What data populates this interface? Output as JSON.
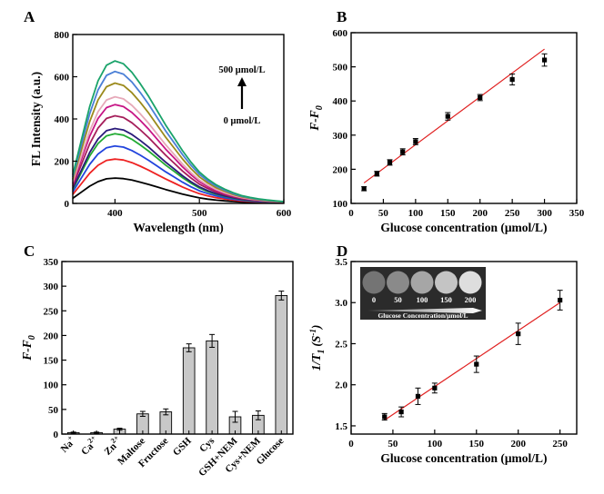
{
  "figure": {
    "panel_letters": [
      "A",
      "B",
      "C",
      "D"
    ]
  },
  "chart_data": [
    {
      "panel": "A",
      "type": "line",
      "xlabel": "Wavelength (nm)",
      "ylabel": "FL Intensity (a.u.)",
      "xlim": [
        350,
        600
      ],
      "ylim": [
        0,
        800
      ],
      "xticks": [
        400,
        500,
        600
      ],
      "yticks": [
        0,
        200,
        400,
        600,
        800
      ],
      "annotation_top": "500 μmol/L",
      "annotation_bottom": "0 μmol/L",
      "peak_wavelength": 403,
      "spectrum_shape": {
        "x": [
          350,
          360,
          370,
          380,
          390,
          400,
          410,
          420,
          430,
          440,
          450,
          460,
          470,
          480,
          490,
          500,
          510,
          520,
          530,
          540,
          550,
          560,
          570,
          580,
          590,
          600
        ],
        "relative": [
          0.2,
          0.44,
          0.68,
          0.86,
          0.97,
          1.0,
          0.98,
          0.92,
          0.84,
          0.75,
          0.65,
          0.55,
          0.46,
          0.37,
          0.29,
          0.22,
          0.17,
          0.13,
          0.1,
          0.075,
          0.055,
          0.042,
          0.032,
          0.024,
          0.018,
          0.013
        ]
      },
      "series": [
        {
          "peak": 120,
          "color": "#000000"
        },
        {
          "peak": 210,
          "color": "#ee2222"
        },
        {
          "peak": 272,
          "color": "#2244dd"
        },
        {
          "peak": 330,
          "color": "#22aa33"
        },
        {
          "peak": 355,
          "color": "#2a1a7a"
        },
        {
          "peak": 415,
          "color": "#a51e5a"
        },
        {
          "peak": 468,
          "color": "#c71585"
        },
        {
          "peak": 505,
          "color": "#e6a8b8"
        },
        {
          "peak": 570,
          "color": "#9b8a1c"
        },
        {
          "peak": 625,
          "color": "#4a7fd6"
        },
        {
          "peak": 675,
          "color": "#1aa36a"
        }
      ]
    },
    {
      "panel": "B",
      "type": "scatter",
      "xlabel": "Glucose concentration (μmol/L)",
      "ylabel": "F-F",
      "ylabel_subscript": "0",
      "xlim": [
        0,
        350
      ],
      "ylim": [
        100,
        600
      ],
      "xticks": [
        0,
        50,
        100,
        150,
        200,
        250,
        300,
        350
      ],
      "yticks": [
        100,
        200,
        300,
        400,
        500,
        600
      ],
      "points": [
        {
          "x": 20,
          "y": 143,
          "err": 6
        },
        {
          "x": 40,
          "y": 187,
          "err": 7
        },
        {
          "x": 60,
          "y": 220,
          "err": 8
        },
        {
          "x": 80,
          "y": 251,
          "err": 9
        },
        {
          "x": 100,
          "y": 281,
          "err": 9
        },
        {
          "x": 150,
          "y": 355,
          "err": 11
        },
        {
          "x": 200,
          "y": 410,
          "err": 9
        },
        {
          "x": 250,
          "y": 463,
          "err": 16
        },
        {
          "x": 300,
          "y": 520,
          "err": 18
        }
      ],
      "fit_line": {
        "x": [
          20,
          300
        ],
        "y": [
          160,
          552
        ]
      },
      "colors": {
        "marker": "#000000",
        "fit": "#e02020"
      }
    },
    {
      "panel": "C",
      "type": "bar",
      "ylabel": "F-F",
      "ylabel_subscript": "0",
      "ylim": [
        0,
        350
      ],
      "yticks": [
        0,
        50,
        100,
        150,
        200,
        250,
        300,
        350
      ],
      "categories": [
        "Na",
        "Ca",
        "Zn",
        "Maltose",
        "Fructose",
        "GSH",
        "Cys",
        "GSH+NEM",
        "Cys+NEM",
        "Glucose"
      ],
      "category_superscripts": [
        "+",
        "2+",
        "2+",
        "",
        "",
        "",
        "",
        "",
        "",
        ""
      ],
      "values": [
        3,
        3,
        10,
        41,
        45,
        175,
        189,
        35,
        38,
        281
      ],
      "errors": [
        1,
        1,
        2,
        5,
        6,
        8,
        13,
        11,
        9,
        9
      ],
      "colors": {
        "bar": "#c8c8c8",
        "edge": "#000000"
      }
    },
    {
      "panel": "D",
      "type": "scatter",
      "xlabel": "Glucose concentration (μmol/L)",
      "ylabel": "1/T",
      "ylabel_subscript": "1",
      "ylabel_unit": "(S",
      "ylabel_unit_sup": "-1",
      "ylabel_unit_close": ")",
      "xlim": [
        0,
        270
      ],
      "ylim": [
        1.4,
        3.5
      ],
      "xticks": [
        0,
        50,
        100,
        150,
        200,
        250
      ],
      "yticks": [
        1.5,
        2.0,
        2.5,
        3.0,
        3.5
      ],
      "points": [
        {
          "x": 40,
          "y": 1.61,
          "err": 0.04
        },
        {
          "x": 60,
          "y": 1.67,
          "err": 0.06
        },
        {
          "x": 80,
          "y": 1.86,
          "err": 0.1
        },
        {
          "x": 100,
          "y": 1.96,
          "err": 0.06
        },
        {
          "x": 150,
          "y": 2.25,
          "err": 0.1
        },
        {
          "x": 200,
          "y": 2.62,
          "err": 0.13
        },
        {
          "x": 250,
          "y": 3.03,
          "err": 0.12
        }
      ],
      "fit_line": {
        "x": [
          40,
          250
        ],
        "y": [
          1.57,
          3.0
        ]
      },
      "colors": {
        "marker": "#000000",
        "fit": "#e02020"
      },
      "inset": {
        "labels": [
          "0",
          "50",
          "100",
          "150",
          "200"
        ],
        "gray_levels": [
          "#747474",
          "#8a8a8a",
          "#a6a6a6",
          "#c4c4c4",
          "#dedede"
        ],
        "caption": "Glucose Concentration/μmol/L",
        "background": "#2b2b2b"
      }
    }
  ]
}
